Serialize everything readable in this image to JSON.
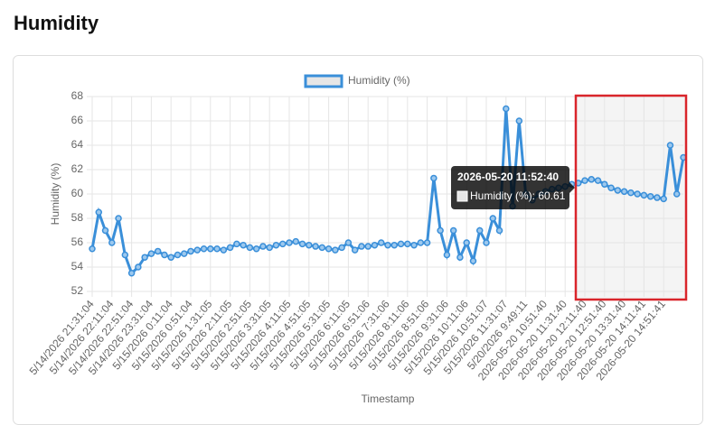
{
  "heading": "Humidity",
  "chart_data": {
    "type": "line",
    "x_label": "Timestamp",
    "y_label": "Humidity (%)",
    "categories": [
      "5/14/2026 21:31:04",
      null,
      null,
      "5/14/2026 22:11:04",
      null,
      null,
      "5/14/2026 22:51:04",
      null,
      null,
      "5/14/2026 23:31:04",
      null,
      null,
      "5/15/2026 0:11:04",
      null,
      null,
      "5/15/2026 0:51:04",
      null,
      null,
      "5/15/2026 1:31:05",
      null,
      null,
      "5/15/2026 2:11:05",
      null,
      null,
      "5/15/2026 2:51:05",
      null,
      null,
      "5/15/2026 3:31:05",
      null,
      null,
      "5/15/2026 4:11:05",
      null,
      null,
      "5/15/2026 4:51:05",
      null,
      null,
      "5/15/2026 5:31:05",
      null,
      null,
      "5/15/2026 6:11:05",
      null,
      null,
      "5/15/2026 6:51:06",
      null,
      null,
      "5/15/2026 7:31:06",
      null,
      null,
      "5/15/2026 8:11:06",
      null,
      null,
      "5/15/2026 8:51:06",
      null,
      null,
      "5/15/2026 9:31:06",
      null,
      null,
      "5/15/2026 10:11:06",
      null,
      null,
      "5/15/2026 10:51:07",
      null,
      null,
      "5/15/2026 11:31:07",
      null,
      null,
      "5/20/2026 9:49:11",
      null,
      null,
      "2026-05-20 10:51:40",
      null,
      null,
      "2026-05-20 11:31:40",
      null,
      null,
      "2026-05-20 12:11:40",
      null,
      null,
      "2026-05-20 12:51:40",
      null,
      null,
      "2026-05-20 13:31:40",
      null,
      null,
      "2026-05-20 14:11:41",
      null,
      null,
      "2026-05-20 14:51:41",
      null,
      null,
      null
    ],
    "series": [
      {
        "name": "Humidity (%)",
        "color": "#3a8fd9",
        "values": [
          55.5,
          58.5,
          57,
          56,
          58,
          55,
          53.5,
          54,
          54.8,
          55.1,
          55.3,
          55,
          54.8,
          55,
          55.1,
          55.3,
          55.4,
          55.5,
          55.5,
          55.5,
          55.4,
          55.6,
          55.9,
          55.8,
          55.6,
          55.5,
          55.7,
          55.6,
          55.8,
          55.9,
          56,
          56.1,
          55.9,
          55.8,
          55.7,
          55.6,
          55.5,
          55.4,
          55.6,
          56,
          55.4,
          55.7,
          55.7,
          55.8,
          56,
          55.8,
          55.8,
          55.9,
          55.9,
          55.8,
          56,
          56,
          61.3,
          57,
          55,
          57,
          54.8,
          56,
          54.5,
          57,
          56,
          58,
          57,
          67,
          59,
          66,
          60,
          59.5,
          60,
          60.2,
          60.4,
          60.5,
          60.61,
          60.8,
          60.9,
          61.1,
          61.2,
          61.1,
          60.8,
          60.5,
          60.3,
          60.2,
          60.1,
          60,
          59.9,
          59.8,
          59.7,
          59.6,
          64,
          60,
          63
        ]
      }
    ],
    "ylim": [
      52,
      68
    ],
    "yticks": [
      52,
      54,
      56,
      58,
      60,
      62,
      64,
      66,
      68
    ],
    "grid": true,
    "legend": "top",
    "tooltip": {
      "title": "2026-05-20 11:52:40",
      "label": "Humidity (%): 60.61"
    }
  }
}
